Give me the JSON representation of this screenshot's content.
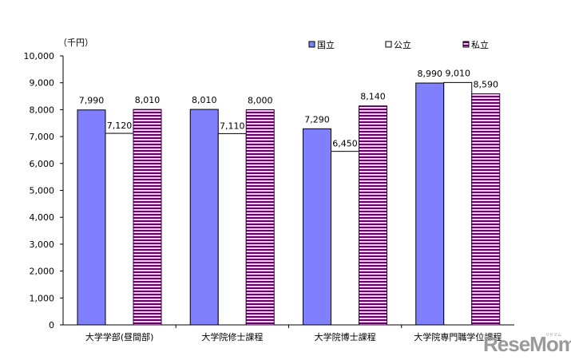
{
  "chart_data": {
    "type": "bar",
    "title": "",
    "unit_label": "（千円）",
    "xlabel": "",
    "ylabel": "（千円）",
    "ylim": [
      0,
      10000
    ],
    "yticks": [
      0,
      1000,
      2000,
      3000,
      4000,
      5000,
      6000,
      7000,
      8000,
      9000,
      10000
    ],
    "ytick_labels": [
      "0",
      "1,000",
      "2,000",
      "3,000",
      "4,000",
      "5,000",
      "6,000",
      "7,000",
      "8,000",
      "9,000",
      "10,000"
    ],
    "grid": false,
    "legend_position": "top-right",
    "categories": [
      "大学学部(昼間部)",
      "大学院修士課程",
      "大学院博士課程",
      "大学院専門職学位課程"
    ],
    "series": [
      {
        "name": "国立",
        "values": [
          7990,
          8010,
          7290,
          8990
        ],
        "labels": [
          "7,990",
          "8,010",
          "7,290",
          "8,990"
        ],
        "color": "#8080ff",
        "pattern": "solid"
      },
      {
        "name": "公立",
        "values": [
          7120,
          7110,
          6450,
          9010
        ],
        "labels": [
          "7,120",
          "7,110",
          "6,450",
          "9,010"
        ],
        "color": "#ffffff",
        "pattern": "solid"
      },
      {
        "name": "私立",
        "values": [
          8010,
          8000,
          8140,
          8590
        ],
        "labels": [
          "8,010",
          "8,000",
          "8,140",
          "8,590"
        ],
        "color": "#660066",
        "pattern": "horizontal-stripes"
      }
    ]
  },
  "watermark": {
    "text": "ReseMom.",
    "small": "リセマム"
  }
}
